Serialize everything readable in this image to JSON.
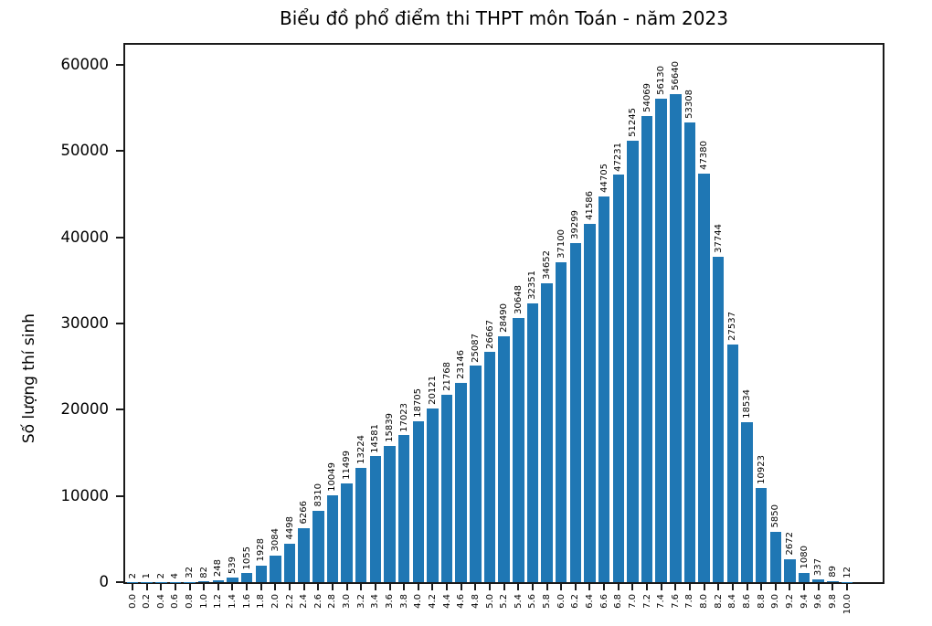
{
  "chart_data": {
    "type": "bar",
    "title": "Biểu đồ phổ điểm thi THPT môn Toán - năm 2023",
    "xlabel": "",
    "ylabel": "Số lượng thí sinh",
    "categories": [
      "0.0",
      "0.2",
      "0.4",
      "0.6",
      "0.8",
      "1.0",
      "1.2",
      "1.4",
      "1.6",
      "1.8",
      "2.0",
      "2.2",
      "2.4",
      "2.6",
      "2.8",
      "3.0",
      "3.2",
      "3.4",
      "3.6",
      "3.8",
      "4.0",
      "4.2",
      "4.4",
      "4.6",
      "4.8",
      "5.0",
      "5.2",
      "5.4",
      "5.6",
      "5.8",
      "6.0",
      "6.2",
      "6.4",
      "6.6",
      "6.8",
      "7.0",
      "7.2",
      "7.4",
      "7.6",
      "7.8",
      "8.0",
      "8.2",
      "8.4",
      "8.6",
      "8.8",
      "9.0",
      "9.2",
      "9.4",
      "9.6",
      "9.8",
      "10.0"
    ],
    "values": [
      2,
      1,
      2,
      4,
      32,
      82,
      248,
      539,
      1055,
      1928,
      3084,
      4498,
      6266,
      8310,
      10049,
      11499,
      13224,
      14581,
      15839,
      17023,
      18705,
      20121,
      21768,
      23146,
      25087,
      26667,
      28490,
      30648,
      32351,
      34652,
      37100,
      39299,
      41586,
      44705,
      47231,
      51245,
      54069,
      56130,
      56640,
      53308,
      47380,
      37744,
      27537,
      18534,
      10923,
      5850,
      2672,
      1080,
      337,
      89,
      12
    ],
    "bar_labels_shown": true,
    "bar_label_rotation": 90,
    "xtick_rotation": 90,
    "yticks": [
      0,
      10000,
      20000,
      30000,
      40000,
      50000,
      60000
    ],
    "ylim": [
      0,
      62330
    ],
    "bar_color": "#1f77b4",
    "axis_color": "#1a1a1a",
    "grid": false,
    "legend": null
  }
}
